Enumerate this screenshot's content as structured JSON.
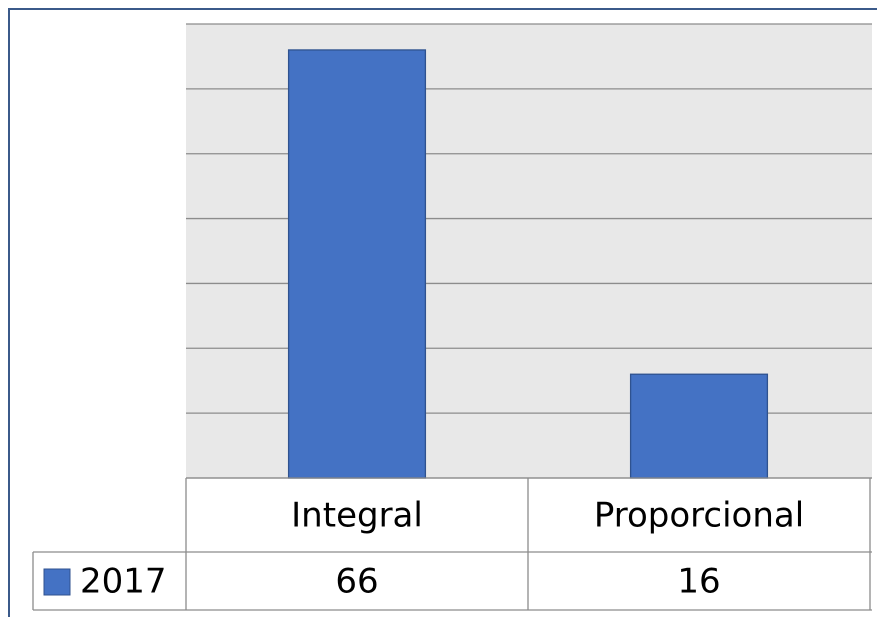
{
  "chart_data": {
    "type": "bar",
    "categories": [
      "Integral",
      "Proporcional"
    ],
    "series": [
      {
        "name": "2017",
        "color": "#4472c4",
        "values": [
          66,
          16
        ]
      }
    ],
    "ylim": [
      0,
      70
    ],
    "yticks": [
      0,
      10,
      20,
      30,
      40,
      50,
      60,
      70
    ],
    "grid": true,
    "data_table": true
  }
}
